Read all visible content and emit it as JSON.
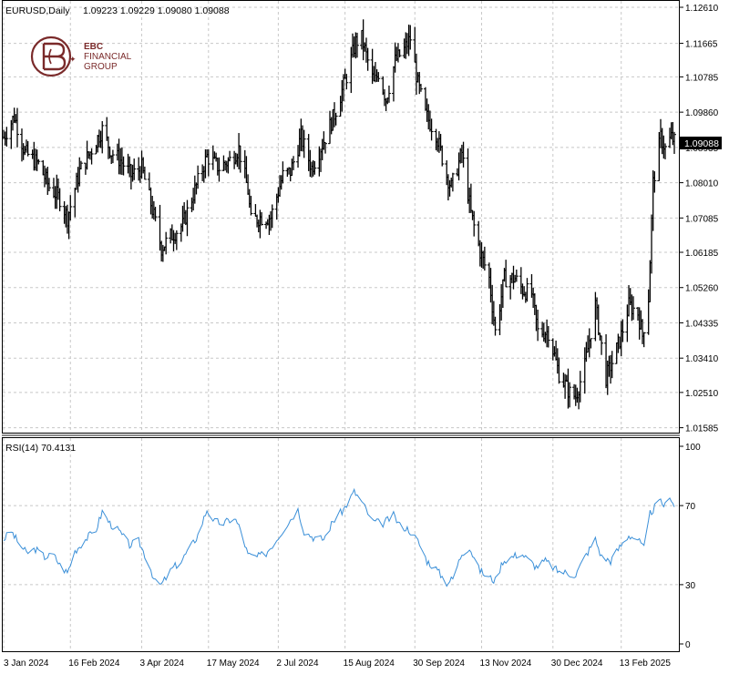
{
  "header": {
    "symbol": "EURUSD,Daily",
    "ohlc": "1.09223 1.09229 1.09080 1.09088"
  },
  "logo": {
    "line1": "EBC",
    "line2": "FINANCIAL",
    "line3": "GROUP",
    "color": "#7a2a2a"
  },
  "colors": {
    "grid": "#c8c8c8",
    "frame": "#000000",
    "rsi_line": "#3a8fd8",
    "price_bar": "#000000",
    "current_label_bg": "#000000"
  },
  "chart_data": [
    {
      "type": "ohlc",
      "title": "EURUSD,Daily",
      "ylim": [
        1.0148,
        1.1261
      ],
      "y_ticks": [
        "1.12610",
        "1.11665",
        "1.10785",
        "1.09860",
        "1.08935",
        "1.08010",
        "1.07085",
        "1.06185",
        "1.05260",
        "1.04335",
        "1.03410",
        "1.02510",
        "1.01585"
      ],
      "current_price": "1.09088",
      "x": {
        "start": "2024-01-03",
        "end": "2025-03-03"
      },
      "x_ticks": [
        "3 Jan 2024",
        "16 Feb 2024",
        "3 Apr 2024",
        "17 May 2024",
        "2 Jul 2024",
        "15 Aug 2024",
        "30 Sep 2024",
        "13 Nov 2024",
        "30 Dec 2024",
        "13 Feb 2025"
      ],
      "close_path": [
        [
          "2024-01-03",
          1.092
        ],
        [
          "2024-01-10",
          1.0975
        ],
        [
          "2024-01-17",
          1.088
        ],
        [
          "2024-01-26",
          1.085
        ],
        [
          "2024-02-02",
          1.079
        ],
        [
          "2024-02-09",
          1.076
        ],
        [
          "2024-02-14",
          1.071
        ],
        [
          "2024-02-22",
          1.083
        ],
        [
          "2024-03-08",
          1.094
        ],
        [
          "2024-03-14",
          1.088
        ],
        [
          "2024-03-20",
          1.086
        ],
        [
          "2024-03-27",
          1.082
        ],
        [
          "2024-04-03",
          1.084
        ],
        [
          "2024-04-10",
          1.073
        ],
        [
          "2024-04-16",
          1.063
        ],
        [
          "2024-04-22",
          1.066
        ],
        [
          "2024-04-30",
          1.069
        ],
        [
          "2024-05-06",
          1.076
        ],
        [
          "2024-05-16",
          1.087
        ],
        [
          "2024-05-24",
          1.084
        ],
        [
          "2024-05-31",
          1.086
        ],
        [
          "2024-06-06",
          1.089
        ],
        [
          "2024-06-12",
          1.078
        ],
        [
          "2024-06-14",
          1.07
        ],
        [
          "2024-06-20",
          1.071
        ],
        [
          "2024-06-27",
          1.071
        ],
        [
          "2024-07-05",
          1.082
        ],
        [
          "2024-07-10",
          1.083
        ],
        [
          "2024-07-17",
          1.092
        ],
        [
          "2024-07-24",
          1.084
        ],
        [
          "2024-08-02",
          1.092
        ],
        [
          "2024-08-08",
          1.098
        ],
        [
          "2024-08-16",
          1.108
        ],
        [
          "2024-08-22",
          1.117
        ],
        [
          "2024-08-26",
          1.118
        ],
        [
          "2024-09-03",
          1.106
        ],
        [
          "2024-09-06",
          1.109
        ],
        [
          "2024-09-11",
          1.102
        ],
        [
          "2024-09-17",
          1.112
        ],
        [
          "2024-09-23",
          1.115
        ],
        [
          "2024-09-27",
          1.118
        ],
        [
          "2024-10-02",
          1.106
        ],
        [
          "2024-10-07",
          1.098
        ],
        [
          "2024-10-14",
          1.093
        ],
        [
          "2024-10-21",
          1.082
        ],
        [
          "2024-10-24",
          1.079
        ],
        [
          "2024-10-31",
          1.088
        ],
        [
          "2024-11-06",
          1.072
        ],
        [
          "2024-11-12",
          1.062
        ],
        [
          "2024-11-18",
          1.055
        ],
        [
          "2024-11-22",
          1.041
        ],
        [
          "2024-11-28",
          1.055
        ],
        [
          "2024-12-05",
          1.055
        ],
        [
          "2024-12-10",
          1.052
        ],
        [
          "2024-12-16",
          1.051
        ],
        [
          "2024-12-20",
          1.041
        ],
        [
          "2024-12-27",
          1.041
        ],
        [
          "2025-01-03",
          1.03
        ],
        [
          "2025-01-10",
          1.025
        ],
        [
          "2025-01-14",
          1.024
        ],
        [
          "2025-01-20",
          1.032
        ],
        [
          "2025-01-27",
          1.048
        ],
        [
          "2025-02-03",
          1.029
        ],
        [
          "2025-02-07",
          1.033
        ],
        [
          "2025-02-13",
          1.04
        ],
        [
          "2025-02-18",
          1.048
        ],
        [
          "2025-02-24",
          1.046
        ],
        [
          "2025-02-27",
          1.04
        ],
        [
          "2025-03-03",
          1.05
        ],
        [
          "2025-03-06",
          1.08
        ],
        [
          "2025-03-11",
          1.092
        ],
        [
          "2025-03-14",
          1.089
        ],
        [
          "2025-03-18",
          1.092
        ],
        [
          "2025-03-20",
          1.0909
        ]
      ]
    },
    {
      "type": "line",
      "title": "RSI(14) 70.4131",
      "ylim": [
        0,
        100
      ],
      "y_ticks": [
        "100",
        "70",
        "30",
        "0"
      ],
      "x_ticks": [
        "3 Jan 2024",
        "16 Feb 2024",
        "3 Apr 2024",
        "17 May 2024",
        "2 Jul 2024",
        "15 Aug 2024",
        "30 Sep 2024",
        "13 Nov 2024",
        "30 Dec 2024",
        "13 Feb 2025"
      ],
      "series": [
        {
          "values": [
            [
              "2024-01-03",
              53
            ],
            [
              "2024-01-08",
              57
            ],
            [
              "2024-01-12",
              52
            ],
            [
              "2024-01-18",
              46
            ],
            [
              "2024-01-24",
              48
            ],
            [
              "2024-01-30",
              44
            ],
            [
              "2024-02-05",
              45
            ],
            [
              "2024-02-09",
              40
            ],
            [
              "2024-02-14",
              36
            ],
            [
              "2024-02-19",
              47
            ],
            [
              "2024-02-26",
              53
            ],
            [
              "2024-03-04",
              58
            ],
            [
              "2024-03-08",
              67
            ],
            [
              "2024-03-13",
              61
            ],
            [
              "2024-03-19",
              57
            ],
            [
              "2024-03-26",
              50
            ],
            [
              "2024-04-01",
              52
            ],
            [
              "2024-04-08",
              40
            ],
            [
              "2024-04-12",
              31
            ],
            [
              "2024-04-16",
              30
            ],
            [
              "2024-04-23",
              38
            ],
            [
              "2024-04-29",
              42
            ],
            [
              "2024-05-06",
              50
            ],
            [
              "2024-05-10",
              55
            ],
            [
              "2024-05-16",
              68
            ],
            [
              "2024-05-21",
              62
            ],
            [
              "2024-05-27",
              61
            ],
            [
              "2024-06-03",
              64
            ],
            [
              "2024-06-07",
              58
            ],
            [
              "2024-06-12",
              45
            ],
            [
              "2024-06-18",
              44
            ],
            [
              "2024-06-24",
              46
            ],
            [
              "2024-07-01",
              53
            ],
            [
              "2024-07-08",
              61
            ],
            [
              "2024-07-15",
              68
            ],
            [
              "2024-07-19",
              57
            ],
            [
              "2024-07-25",
              54
            ],
            [
              "2024-08-01",
              53
            ],
            [
              "2024-08-07",
              62
            ],
            [
              "2024-08-14",
              68
            ],
            [
              "2024-08-21",
              77
            ],
            [
              "2024-08-26",
              72
            ],
            [
              "2024-09-02",
              62
            ],
            [
              "2024-09-09",
              61
            ],
            [
              "2024-09-16",
              65
            ],
            [
              "2024-09-20",
              60
            ],
            [
              "2024-09-26",
              58
            ],
            [
              "2024-10-02",
              52
            ],
            [
              "2024-10-08",
              42
            ],
            [
              "2024-10-14",
              38
            ],
            [
              "2024-10-21",
              31
            ],
            [
              "2024-10-25",
              33
            ],
            [
              "2024-10-31",
              46
            ],
            [
              "2024-11-05",
              49
            ],
            [
              "2024-11-11",
              38
            ],
            [
              "2024-11-15",
              35
            ],
            [
              "2024-11-22",
              32
            ],
            [
              "2024-11-27",
              42
            ],
            [
              "2024-12-03",
              44
            ],
            [
              "2024-12-09",
              46
            ],
            [
              "2024-12-13",
              43
            ],
            [
              "2024-12-19",
              39
            ],
            [
              "2024-12-25",
              42
            ],
            [
              "2025-01-02",
              37
            ],
            [
              "2025-01-08",
              36
            ],
            [
              "2025-01-14",
              35
            ],
            [
              "2025-01-20",
              44
            ],
            [
              "2025-01-27",
              53
            ],
            [
              "2025-01-31",
              44
            ],
            [
              "2025-02-06",
              42
            ],
            [
              "2025-02-12",
              49
            ],
            [
              "2025-02-18",
              55
            ],
            [
              "2025-02-24",
              53
            ],
            [
              "2025-02-28",
              48
            ],
            [
              "2025-03-04",
              66
            ],
            [
              "2025-03-10",
              72
            ],
            [
              "2025-03-14",
              70
            ],
            [
              "2025-03-18",
              74
            ],
            [
              "2025-03-20",
              70.4
            ]
          ]
        }
      ]
    }
  ]
}
